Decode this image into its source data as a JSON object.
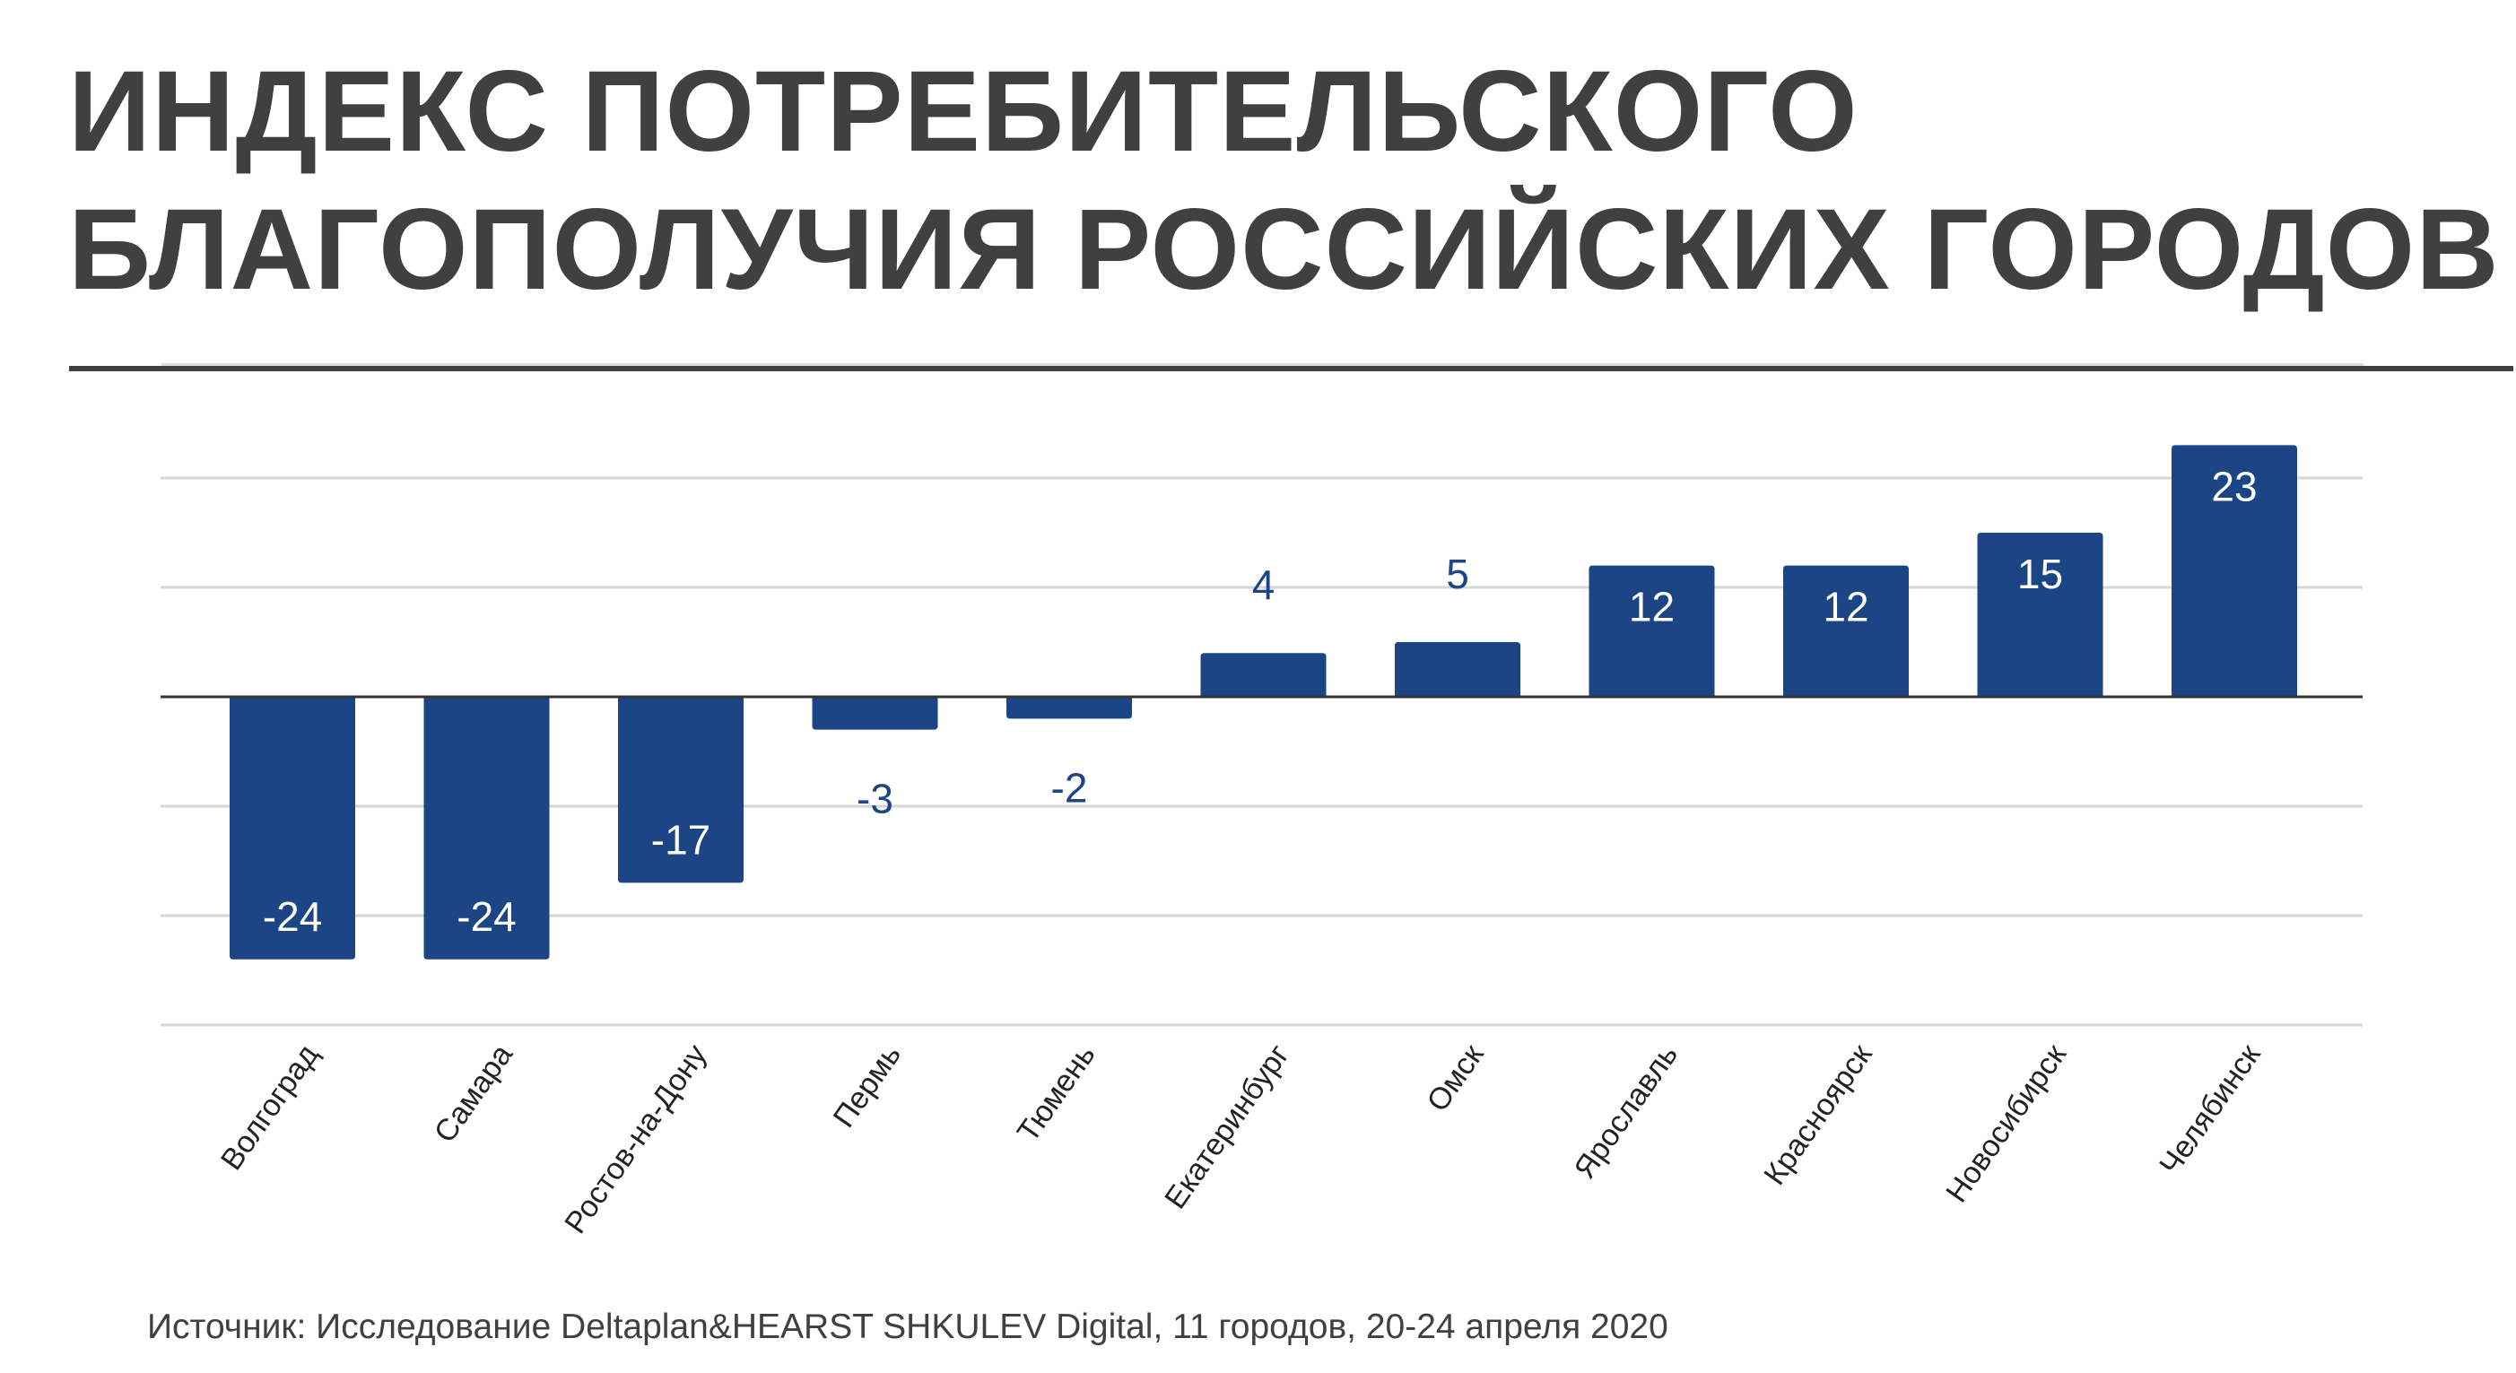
{
  "title": {
    "line1": "ИНДЕКС ПОТРЕБИТЕЛЬСКОГО",
    "line2": "БЛАГОПОЛУЧИЯ РОССИЙСКИХ ГОРОДОВ"
  },
  "source": "Источник: Исследование Deltaplan&HEARST SHKULEV Digital, 11 городов, 20-24 апреля 2020",
  "colors": {
    "bar": "#1c4586",
    "label_inside": "#ffffff",
    "label_outside": "#1c4586",
    "title": "#404040",
    "gridline": "#d6d6d6",
    "zero_line": "#333333",
    "category_label": "#222222"
  },
  "chart_data": {
    "type": "bar",
    "title": "ИНДЕКС ПОТРЕБИТЕЛЬСКОГО БЛАГОПОЛУЧИЯ РОССИЙСКИХ ГОРОДОВ",
    "xlabel": "",
    "ylabel": "",
    "categories": [
      "Волгоград",
      "Самара",
      "Ростов-на-Дону",
      "Пермь",
      "Тюмень",
      "Екатеринбург",
      "Омск",
      "Ярославль",
      "Красноярск",
      "Новосибирск",
      "Челябинск"
    ],
    "values": [
      -24,
      -24,
      -17,
      -3,
      -2,
      4,
      5,
      12,
      12,
      15,
      23
    ],
    "data_labels": [
      "-24",
      "-24",
      "-17",
      "-3",
      "-2",
      "4",
      "5",
      "12",
      "12",
      "15",
      "23"
    ],
    "ylim": [
      -30,
      23
    ],
    "gridlines": [
      20,
      10,
      0,
      -10,
      -20,
      -30
    ],
    "grid": true,
    "y_tick_labels_shown": false,
    "legend": "none",
    "category_label_rotation_deg": -55
  }
}
